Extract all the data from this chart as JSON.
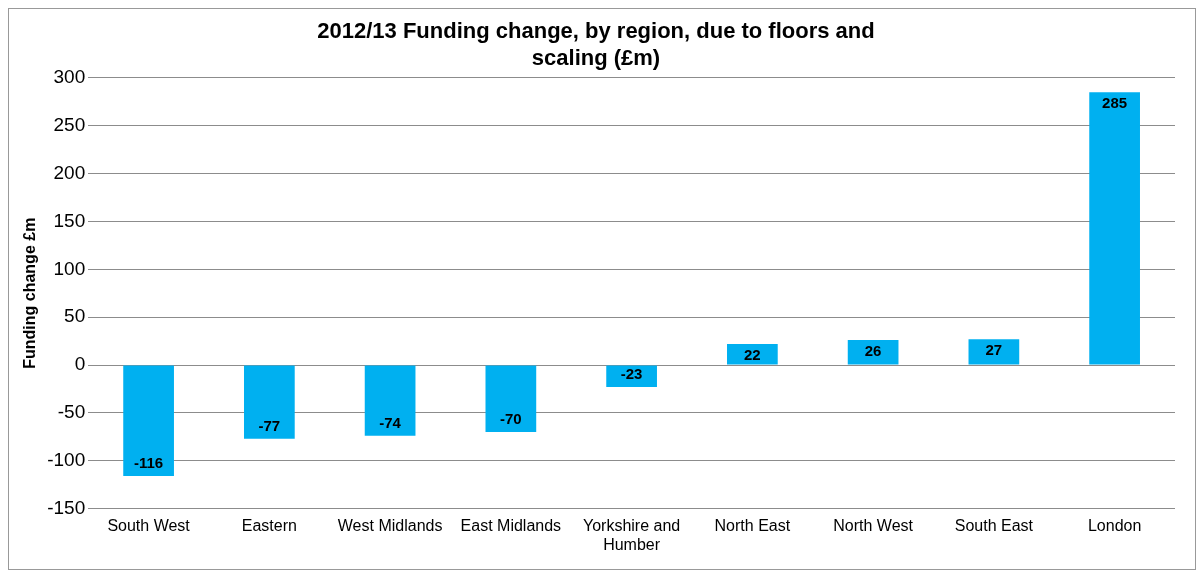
{
  "chart_data": {
    "type": "bar",
    "title": "2012/13 Funding change, by region, due to floors and scaling (£m)",
    "ylabel": "Funding change £m",
    "categories": [
      "South West",
      "Eastern",
      "West Midlands",
      "East Midlands",
      "Yorkshire and Humber",
      "North East",
      "North West",
      "South East",
      "London"
    ],
    "values": [
      -116,
      -77,
      -74,
      -70,
      -23,
      22,
      26,
      27,
      285
    ],
    "color": "#00b0f0",
    "ylim": [
      -150,
      300
    ],
    "yticks": [
      -150,
      -100,
      -50,
      0,
      50,
      100,
      150,
      200,
      250,
      300
    ],
    "grid": "y",
    "data_labels": true,
    "legend": false
  }
}
